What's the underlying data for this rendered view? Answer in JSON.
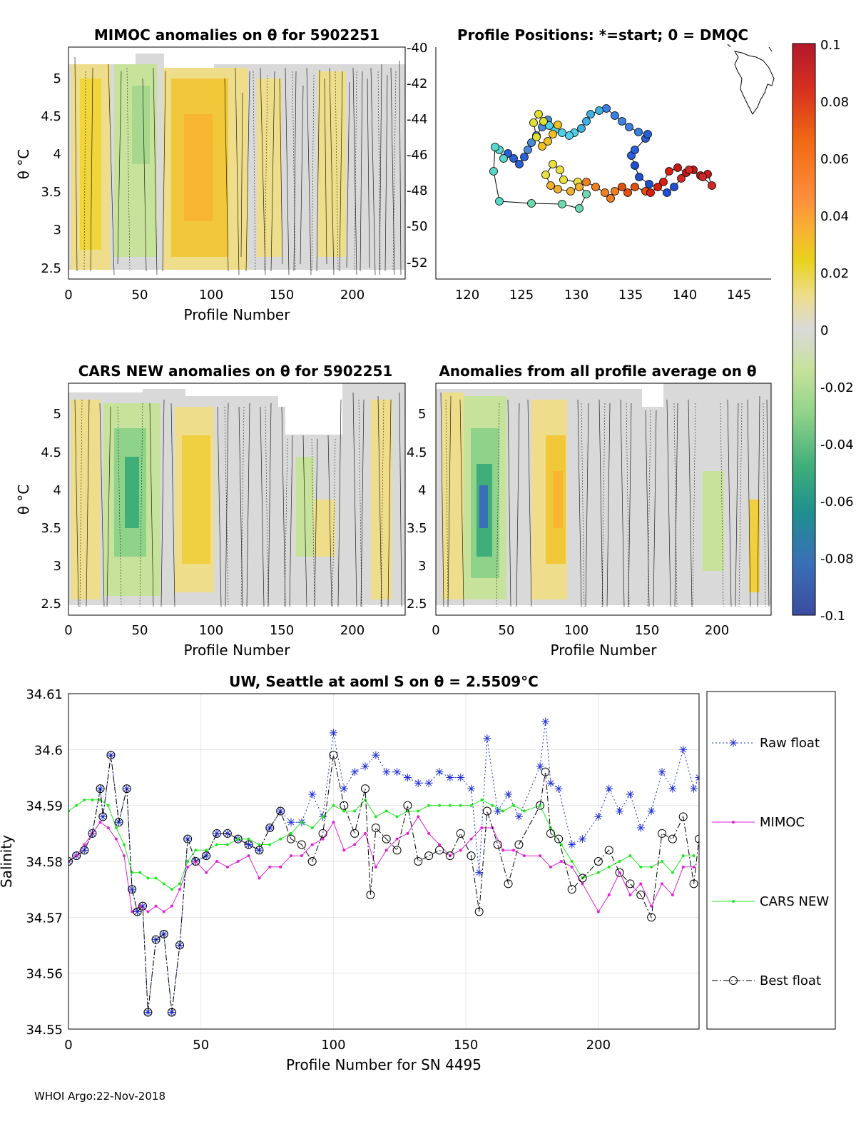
{
  "footer": "WHOI Argo:22-Nov-2018",
  "colorbar": {
    "min": -0.1,
    "max": 0.1,
    "ticks": [
      "0.1",
      "0.08",
      "0.06",
      "0.04",
      "0.02",
      "0",
      "-0.02",
      "-0.04",
      "-0.06",
      "-0.08",
      "-0.1"
    ],
    "colors": [
      "#b2182b",
      "#d7301f",
      "#f16913",
      "#fd8d3c",
      "#f7b531",
      "#e8d21c",
      "#eedd8a",
      "#d9d9d9",
      "#c7e29b",
      "#8fd28a",
      "#3fae7a",
      "#1f8f8f",
      "#3a6fb8",
      "#3b4ba0"
    ]
  },
  "panels": {
    "mimoc": {
      "title": "MIMOC anomalies on θ  for 5902251",
      "ylabel": "θ °C",
      "xlabel": "Profile Number",
      "xticks": [
        "0",
        "50",
        "100",
        "150",
        "200"
      ],
      "yticks": [
        "5",
        "4.5",
        "4",
        "3.5",
        "3",
        "2.5"
      ]
    },
    "positions": {
      "title": "Profile Positions: *=start; 0 = DMQC",
      "xticks": [
        "120",
        "125",
        "130",
        "135",
        "140",
        "145"
      ],
      "yticks": [
        "-40",
        "-42",
        "-44",
        "-46",
        "-48",
        "-50",
        "-52"
      ]
    },
    "cars": {
      "title": "CARS NEW anomalies on θ for 5902251",
      "ylabel": "θ °C",
      "xlabel": "Profile Number",
      "xticks": [
        "0",
        "50",
        "100",
        "150",
        "200"
      ],
      "yticks": [
        "5",
        "4.5",
        "4",
        "3.5",
        "3",
        "2.5"
      ]
    },
    "average": {
      "title": "Anomalies from all profile average on θ",
      "xlabel": "Profile Number",
      "xticks": [
        "0",
        "50",
        "100",
        "150",
        "200"
      ],
      "yticks": [
        "5",
        "4.5",
        "4",
        "3.5",
        "3",
        "2.5"
      ]
    }
  },
  "chart_data": {
    "type": "line",
    "title": "UW, Seattle at aoml S on θ = 2.5509°C",
    "xlabel": "Profile Number for SN 4495",
    "ylabel": "Salinity",
    "xlim": [
      0,
      238
    ],
    "ylim": [
      34.55,
      34.61
    ],
    "xticks": [
      0,
      50,
      100,
      150,
      200
    ],
    "yticks": [
      34.55,
      34.56,
      34.57,
      34.58,
      34.59,
      34.6,
      34.61
    ],
    "ytick_labels": [
      "34.55",
      "34.56",
      "34.57",
      "34.58",
      "34.59",
      "34.6",
      "34.61"
    ],
    "grid": true,
    "legend_position": "right",
    "series": [
      {
        "name": "Raw float",
        "color": "#1f2fd8",
        "style": "dotted",
        "marker": "asterisk",
        "x": [
          0,
          3,
          6,
          9,
          12,
          13,
          16,
          19,
          22,
          24,
          26,
          28,
          30,
          33,
          36,
          39,
          42,
          45,
          48,
          52,
          56,
          60,
          64,
          68,
          72,
          76,
          80,
          84,
          88,
          92,
          96,
          100,
          104,
          108,
          112,
          116,
          120,
          124,
          128,
          132,
          136,
          140,
          144,
          148,
          152,
          155,
          158,
          162,
          166,
          170,
          178,
          180,
          182,
          185,
          190,
          194,
          200,
          204,
          208,
          212,
          216,
          220,
          224,
          228,
          232,
          236,
          238
        ],
        "y": [
          34.58,
          34.581,
          34.582,
          34.585,
          34.593,
          34.588,
          34.599,
          34.587,
          34.593,
          34.575,
          34.571,
          34.572,
          34.553,
          34.566,
          34.567,
          34.553,
          34.565,
          34.584,
          34.58,
          34.581,
          34.585,
          34.585,
          34.584,
          34.583,
          34.582,
          34.586,
          34.589,
          34.587,
          34.587,
          34.592,
          34.588,
          34.603,
          34.593,
          34.596,
          34.597,
          34.599,
          34.596,
          34.596,
          34.595,
          34.594,
          34.594,
          34.596,
          34.595,
          34.595,
          34.593,
          34.578,
          34.602,
          34.589,
          34.592,
          34.588,
          34.597,
          34.605,
          34.594,
          34.593,
          34.583,
          34.584,
          34.588,
          34.593,
          34.589,
          34.592,
          34.586,
          34.589,
          34.596,
          34.593,
          34.6,
          34.593,
          34.595
        ]
      },
      {
        "name": "MIMOC",
        "color": "#e020d8",
        "style": "solid",
        "marker": "dot",
        "x": [
          0,
          3,
          6,
          9,
          12,
          15,
          18,
          21,
          24,
          27,
          30,
          33,
          36,
          39,
          42,
          45,
          48,
          52,
          56,
          60,
          64,
          68,
          72,
          76,
          80,
          84,
          88,
          92,
          96,
          100,
          104,
          108,
          112,
          116,
          120,
          124,
          128,
          132,
          136,
          140,
          144,
          148,
          152,
          156,
          160,
          164,
          168,
          172,
          178,
          182,
          186,
          190,
          194,
          200,
          204,
          208,
          212,
          216,
          220,
          224,
          228,
          232,
          236
        ],
        "y": [
          34.58,
          34.581,
          34.583,
          34.585,
          34.587,
          34.586,
          34.584,
          34.581,
          34.571,
          34.572,
          34.571,
          34.572,
          34.571,
          34.572,
          34.575,
          34.579,
          34.58,
          34.578,
          34.58,
          34.579,
          34.58,
          34.581,
          34.577,
          34.579,
          34.579,
          34.581,
          34.581,
          34.583,
          34.584,
          34.587,
          34.582,
          34.583,
          34.585,
          34.579,
          34.582,
          34.584,
          34.585,
          34.588,
          34.585,
          34.583,
          34.581,
          34.582,
          34.584,
          34.586,
          34.586,
          34.582,
          34.582,
          34.581,
          34.581,
          34.579,
          34.58,
          34.579,
          34.576,
          34.571,
          34.574,
          34.578,
          34.574,
          34.576,
          34.572,
          34.576,
          34.574,
          34.579,
          34.579
        ]
      },
      {
        "name": "CARS NEW",
        "color": "#22e822",
        "style": "solid",
        "marker": "dot",
        "x": [
          0,
          3,
          6,
          9,
          12,
          15,
          18,
          21,
          24,
          27,
          30,
          33,
          36,
          39,
          42,
          45,
          48,
          52,
          56,
          60,
          64,
          68,
          72,
          76,
          80,
          84,
          88,
          92,
          96,
          100,
          104,
          108,
          112,
          116,
          120,
          124,
          128,
          132,
          136,
          140,
          144,
          148,
          152,
          156,
          160,
          164,
          168,
          172,
          178,
          182,
          186,
          190,
          194,
          200,
          204,
          208,
          212,
          216,
          220,
          224,
          228,
          232,
          236
        ],
        "y": [
          34.589,
          34.59,
          34.591,
          34.591,
          34.591,
          34.59,
          34.586,
          34.583,
          34.578,
          34.578,
          34.577,
          34.577,
          34.576,
          34.575,
          34.576,
          34.58,
          34.582,
          34.582,
          34.583,
          34.583,
          34.584,
          34.584,
          34.583,
          34.583,
          34.584,
          34.585,
          34.587,
          34.586,
          34.588,
          34.59,
          34.589,
          34.589,
          34.591,
          34.588,
          34.589,
          34.588,
          34.589,
          34.589,
          34.59,
          34.59,
          34.59,
          34.59,
          34.59,
          34.591,
          34.59,
          34.589,
          34.59,
          34.589,
          34.59,
          34.586,
          34.583,
          34.58,
          34.577,
          34.578,
          34.579,
          34.58,
          34.581,
          34.579,
          34.579,
          34.58,
          34.578,
          34.581,
          34.581
        ]
      },
      {
        "name": "Best float",
        "color": "#000000",
        "style": "dashdot",
        "marker": "circle",
        "x": [
          0,
          3,
          6,
          9,
          12,
          13,
          16,
          19,
          22,
          24,
          26,
          28,
          30,
          33,
          36,
          39,
          42,
          45,
          48,
          52,
          56,
          60,
          64,
          68,
          72,
          76,
          80,
          84,
          88,
          92,
          96,
          100,
          104,
          108,
          112,
          114,
          116,
          120,
          124,
          128,
          132,
          136,
          140,
          144,
          148,
          152,
          155,
          158,
          162,
          166,
          170,
          178,
          180,
          182,
          185,
          190,
          194,
          200,
          204,
          208,
          212,
          216,
          220,
          224,
          228,
          232,
          236,
          238
        ],
        "y": [
          34.58,
          34.581,
          34.582,
          34.585,
          34.593,
          34.588,
          34.599,
          34.587,
          34.593,
          34.575,
          34.571,
          34.572,
          34.553,
          34.566,
          34.567,
          34.553,
          34.565,
          34.584,
          34.58,
          34.581,
          34.585,
          34.585,
          34.584,
          34.583,
          34.582,
          34.586,
          34.589,
          34.584,
          34.583,
          34.58,
          34.585,
          34.599,
          34.59,
          34.585,
          34.593,
          34.574,
          34.586,
          34.584,
          34.582,
          34.59,
          34.58,
          34.581,
          34.582,
          34.581,
          34.585,
          34.581,
          34.571,
          34.589,
          34.583,
          34.576,
          34.583,
          34.59,
          34.596,
          34.585,
          34.584,
          34.575,
          34.577,
          34.58,
          34.582,
          34.578,
          34.576,
          34.574,
          34.57,
          34.585,
          34.584,
          34.588,
          34.576,
          34.584
        ]
      }
    ]
  }
}
